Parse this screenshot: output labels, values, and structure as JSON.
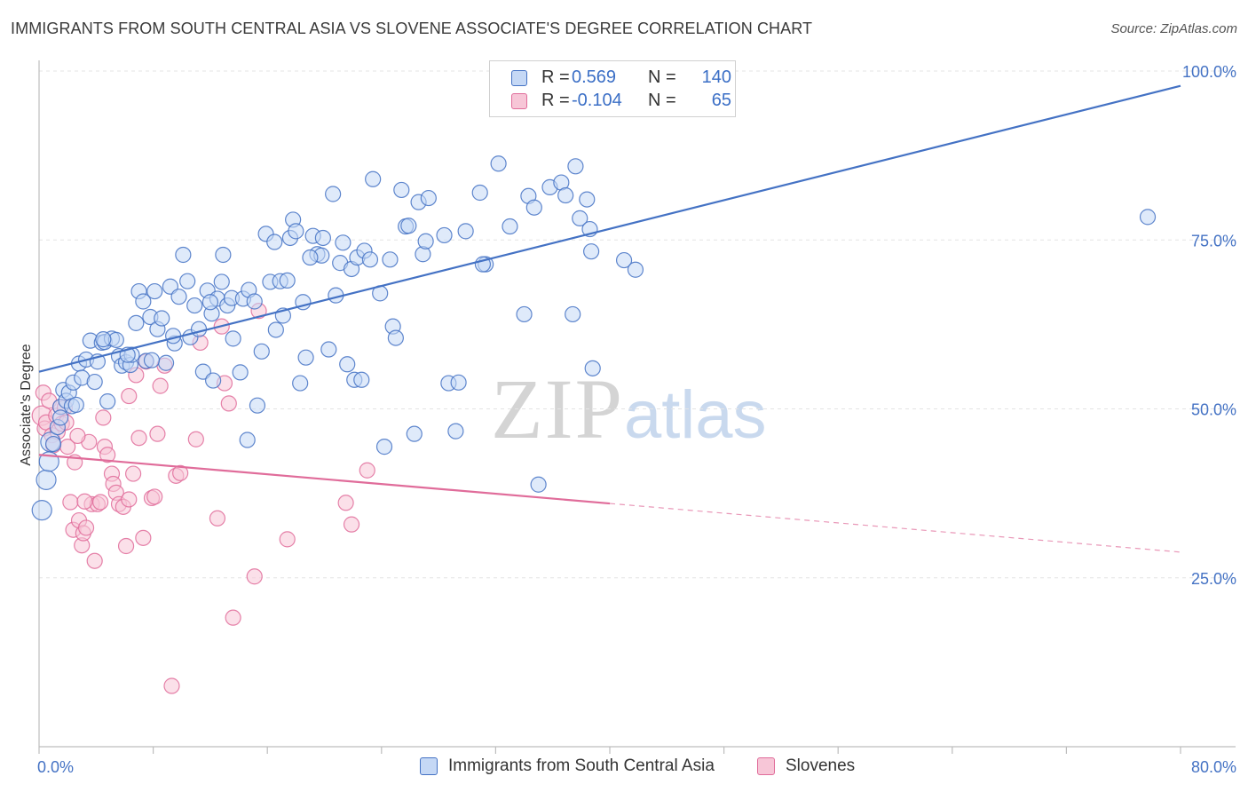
{
  "title": "IMMIGRANTS FROM SOUTH CENTRAL ASIA VS SLOVENE ASSOCIATE'S DEGREE CORRELATION CHART",
  "source": "Source: ZipAtlas.com",
  "watermark": {
    "zip": "ZIP",
    "atlas": "atlas"
  },
  "legend": {
    "r_label": "R =",
    "n_label": "N =",
    "series1": {
      "r": "0.569",
      "n": "140",
      "color": "#4472c4",
      "fill": "#c5d8f5"
    },
    "series2": {
      "r": "-0.104",
      "n": "65",
      "color": "#e06c9a",
      "fill": "#f7c6d7"
    }
  },
  "chart_data": {
    "type": "scatter",
    "xlabel": "",
    "ylabel": "Associate's Degree",
    "xlim": [
      0,
      80
    ],
    "ylim": [
      0,
      100
    ],
    "x_tick_labels": [
      "0.0%",
      "80.0%"
    ],
    "y_ticks": [
      25,
      50,
      75,
      100
    ],
    "y_tick_labels": [
      "25.0%",
      "50.0%",
      "75.0%",
      "100.0%"
    ],
    "grid": true,
    "legend_position": "top-center",
    "series": [
      {
        "name": "Immigrants from South Central Asia",
        "color": "#4472c4",
        "fill": "#c5d8f5",
        "trend": {
          "x0": 0,
          "y0": 55.5,
          "x1": 80,
          "y1": 97.8
        },
        "points": [
          [
            0.2,
            35.0,
            2
          ],
          [
            0.5,
            39.5,
            2
          ],
          [
            0.7,
            42.2,
            2
          ],
          [
            0.8,
            45.1,
            2
          ],
          [
            1.0,
            44.8,
            1
          ],
          [
            1.3,
            47.3,
            1
          ],
          [
            1.5,
            50.3,
            1
          ],
          [
            1.5,
            48.7,
            1
          ],
          [
            1.7,
            52.8,
            1
          ],
          [
            1.9,
            51.2,
            1
          ],
          [
            2.1,
            52.4,
            1
          ],
          [
            2.3,
            50.4,
            1
          ],
          [
            2.4,
            53.9,
            1
          ],
          [
            2.6,
            50.6,
            1
          ],
          [
            2.8,
            56.7,
            1
          ],
          [
            3.0,
            54.6,
            1
          ],
          [
            3.3,
            57.3,
            1
          ],
          [
            3.6,
            60.1,
            1
          ],
          [
            3.9,
            54.0,
            1
          ],
          [
            4.1,
            57.0,
            1
          ],
          [
            4.4,
            59.8,
            1
          ],
          [
            4.6,
            59.9,
            1
          ],
          [
            4.8,
            51.1,
            1
          ],
          [
            5.1,
            60.4,
            1
          ],
          [
            5.4,
            60.2,
            1
          ],
          [
            5.6,
            57.8,
            1
          ],
          [
            5.8,
            56.4,
            1
          ],
          [
            6.1,
            56.9,
            1
          ],
          [
            6.4,
            56.5,
            1
          ],
          [
            6.5,
            58.0,
            1
          ],
          [
            6.8,
            62.7,
            1
          ],
          [
            7.0,
            67.4,
            1
          ],
          [
            7.3,
            65.9,
            1
          ],
          [
            7.5,
            57.1,
            1
          ],
          [
            7.8,
            63.6,
            1
          ],
          [
            8.1,
            67.4,
            1
          ],
          [
            8.3,
            61.8,
            1
          ],
          [
            8.6,
            63.4,
            1
          ],
          [
            8.9,
            56.8,
            1
          ],
          [
            9.2,
            68.1,
            1
          ],
          [
            9.5,
            59.7,
            1
          ],
          [
            9.8,
            66.6,
            1
          ],
          [
            10.1,
            72.8,
            1
          ],
          [
            10.4,
            68.9,
            1
          ],
          [
            10.6,
            60.6,
            1
          ],
          [
            10.9,
            65.3,
            1
          ],
          [
            11.2,
            61.8,
            1
          ],
          [
            11.5,
            55.5,
            1
          ],
          [
            11.8,
            67.5,
            1
          ],
          [
            12.1,
            64.1,
            1
          ],
          [
            12.2,
            54.2,
            1
          ],
          [
            12.5,
            66.3,
            1
          ],
          [
            12.8,
            68.8,
            1
          ],
          [
            12.9,
            72.8,
            1
          ],
          [
            13.2,
            65.3,
            1
          ],
          [
            13.5,
            66.4,
            1
          ],
          [
            13.6,
            60.4,
            1
          ],
          [
            14.1,
            55.4,
            1
          ],
          [
            14.3,
            66.3,
            1
          ],
          [
            14.6,
            45.4,
            1
          ],
          [
            14.7,
            67.6,
            1
          ],
          [
            15.1,
            65.9,
            1
          ],
          [
            15.3,
            50.5,
            1
          ],
          [
            15.6,
            58.5,
            1
          ],
          [
            15.9,
            75.9,
            1
          ],
          [
            16.2,
            68.8,
            1
          ],
          [
            16.6,
            61.7,
            1
          ],
          [
            16.9,
            68.9,
            1
          ],
          [
            17.1,
            63.8,
            1
          ],
          [
            17.4,
            69.0,
            1
          ],
          [
            17.6,
            75.3,
            1
          ],
          [
            17.8,
            78.0,
            1
          ],
          [
            18.0,
            76.3,
            1
          ],
          [
            18.3,
            53.8,
            1
          ],
          [
            18.5,
            65.8,
            1
          ],
          [
            18.7,
            57.6,
            1
          ],
          [
            19.2,
            75.6,
            1
          ],
          [
            19.5,
            72.9,
            1
          ],
          [
            19.8,
            72.7,
            1
          ],
          [
            19.9,
            75.3,
            1
          ],
          [
            20.3,
            58.8,
            1
          ],
          [
            20.6,
            81.8,
            1
          ],
          [
            20.8,
            66.8,
            1
          ],
          [
            21.1,
            71.6,
            1
          ],
          [
            21.3,
            74.6,
            1
          ],
          [
            21.6,
            56.6,
            1
          ],
          [
            21.9,
            70.7,
            1
          ],
          [
            22.1,
            54.3,
            1
          ],
          [
            22.3,
            72.4,
            1
          ],
          [
            22.6,
            54.3,
            1
          ],
          [
            22.8,
            73.4,
            1
          ],
          [
            23.2,
            72.1,
            1
          ],
          [
            23.4,
            84.0,
            1
          ],
          [
            23.9,
            67.1,
            1
          ],
          [
            24.2,
            44.4,
            1
          ],
          [
            24.6,
            72.1,
            1
          ],
          [
            24.8,
            62.2,
            1
          ],
          [
            25.0,
            60.5,
            1
          ],
          [
            25.4,
            82.4,
            1
          ],
          [
            25.7,
            77.0,
            1
          ],
          [
            25.9,
            77.1,
            1
          ],
          [
            26.3,
            46.3,
            1
          ],
          [
            26.6,
            80.6,
            1
          ],
          [
            26.9,
            72.9,
            1
          ],
          [
            27.1,
            74.8,
            1
          ],
          [
            27.3,
            81.2,
            1
          ],
          [
            28.4,
            75.7,
            1
          ],
          [
            28.7,
            53.8,
            1
          ],
          [
            29.4,
            53.9,
            1
          ],
          [
            29.2,
            46.7,
            1
          ],
          [
            29.9,
            76.3,
            1
          ],
          [
            30.9,
            82.0,
            1
          ],
          [
            31.3,
            71.4,
            1
          ],
          [
            31.1,
            71.4,
            1
          ],
          [
            32.2,
            86.3,
            1
          ],
          [
            33.0,
            77.0,
            1
          ],
          [
            34.0,
            64.0,
            1
          ],
          [
            34.3,
            81.5,
            1
          ],
          [
            34.7,
            79.8,
            1
          ],
          [
            35.8,
            82.8,
            1
          ],
          [
            36.6,
            83.5,
            1
          ],
          [
            36.9,
            81.6,
            1
          ],
          [
            35.0,
            38.8,
            1
          ],
          [
            37.4,
            64.0,
            1
          ],
          [
            37.6,
            85.9,
            1
          ],
          [
            37.9,
            78.2,
            1
          ],
          [
            38.4,
            81.0,
            1
          ],
          [
            38.6,
            76.6,
            1
          ],
          [
            38.7,
            73.3,
            1
          ],
          [
            38.8,
            56.0,
            1
          ],
          [
            41.0,
            72.0,
            1
          ],
          [
            41.8,
            70.6,
            1
          ],
          [
            77.7,
            78.4,
            1
          ],
          [
            12.0,
            65.8,
            1
          ],
          [
            9.4,
            60.8,
            1
          ],
          [
            6.2,
            58.0,
            1
          ],
          [
            7.9,
            57.2,
            1
          ],
          [
            4.5,
            60.3,
            1
          ],
          [
            19.0,
            72.4,
            1
          ],
          [
            16.5,
            74.7,
            1
          ]
        ]
      },
      {
        "name": "Slovenes",
        "color": "#e06c9a",
        "fill": "#f7c6d7",
        "trend": {
          "x0": 0,
          "y0": 43.2,
          "x1": 40,
          "y1": 36.0
        },
        "trend_dashed": {
          "x0": 40,
          "y0": 36.0,
          "x1": 80,
          "y1": 28.8
        },
        "points": [
          [
            0.2,
            49.0,
            2
          ],
          [
            0.3,
            52.4,
            1
          ],
          [
            0.4,
            47.1,
            1
          ],
          [
            0.5,
            48.0,
            1
          ],
          [
            0.7,
            51.2,
            1
          ],
          [
            0.9,
            46.1,
            1
          ],
          [
            1.0,
            44.6,
            1
          ],
          [
            1.2,
            49.0,
            1
          ],
          [
            1.3,
            46.6,
            1
          ],
          [
            1.5,
            50.3,
            1
          ],
          [
            1.6,
            47.8,
            1
          ],
          [
            1.8,
            50.2,
            1
          ],
          [
            2.0,
            44.4,
            1
          ],
          [
            2.2,
            36.2,
            1
          ],
          [
            2.4,
            32.1,
            1
          ],
          [
            2.5,
            42.1,
            1
          ],
          [
            2.8,
            33.5,
            1
          ],
          [
            3.0,
            29.8,
            1
          ],
          [
            3.1,
            31.6,
            1
          ],
          [
            3.3,
            32.4,
            1
          ],
          [
            3.5,
            45.1,
            1
          ],
          [
            3.7,
            35.9,
            1
          ],
          [
            3.9,
            27.5,
            1
          ],
          [
            4.1,
            35.9,
            1
          ],
          [
            4.3,
            36.2,
            1
          ],
          [
            4.5,
            48.7,
            1
          ],
          [
            4.6,
            44.4,
            1
          ],
          [
            4.8,
            43.2,
            1
          ],
          [
            5.1,
            40.4,
            1
          ],
          [
            5.2,
            38.9,
            1
          ],
          [
            5.4,
            37.6,
            1
          ],
          [
            5.6,
            35.9,
            1
          ],
          [
            5.9,
            35.5,
            1
          ],
          [
            6.1,
            29.7,
            1
          ],
          [
            6.3,
            36.6,
            1
          ],
          [
            6.6,
            40.4,
            1
          ],
          [
            6.8,
            55.0,
            1
          ],
          [
            7.0,
            45.7,
            1
          ],
          [
            7.3,
            30.9,
            1
          ],
          [
            7.5,
            57.0,
            1
          ],
          [
            7.9,
            36.8,
            1
          ],
          [
            8.1,
            37.0,
            1
          ],
          [
            8.3,
            46.3,
            1
          ],
          [
            8.5,
            53.4,
            1
          ],
          [
            8.8,
            56.4,
            1
          ],
          [
            9.3,
            9.0,
            1
          ],
          [
            9.6,
            40.1,
            1
          ],
          [
            9.9,
            40.5,
            1
          ],
          [
            11.0,
            45.5,
            1
          ],
          [
            11.3,
            59.8,
            1
          ],
          [
            12.5,
            33.8,
            1
          ],
          [
            12.8,
            62.2,
            1
          ],
          [
            13.0,
            53.8,
            1
          ],
          [
            13.3,
            50.8,
            1
          ],
          [
            13.6,
            19.1,
            1
          ],
          [
            15.1,
            25.2,
            1
          ],
          [
            15.4,
            64.5,
            1
          ],
          [
            17.4,
            30.7,
            1
          ],
          [
            21.5,
            36.1,
            1
          ],
          [
            21.9,
            32.9,
            1
          ],
          [
            23.0,
            40.9,
            1
          ],
          [
            6.3,
            51.9,
            1
          ],
          [
            3.2,
            36.3,
            1
          ],
          [
            2.7,
            46.0,
            1
          ],
          [
            1.9,
            48.0,
            1
          ]
        ]
      }
    ]
  }
}
